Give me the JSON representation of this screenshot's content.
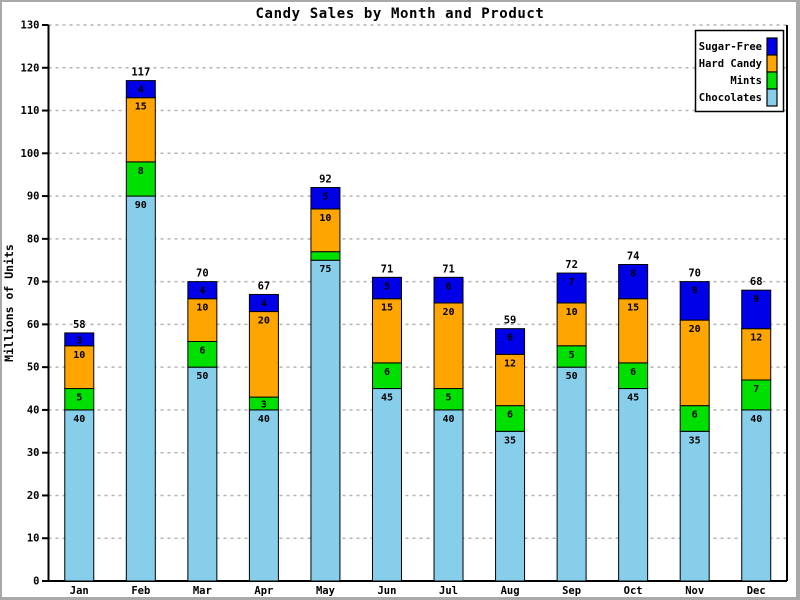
{
  "chart_data": {
    "type": "bar",
    "stacked": true,
    "title": "Candy Sales by Month and Product",
    "xlabel": "",
    "ylabel": "Millions of Units",
    "ylim": [
      0,
      130
    ],
    "ytick_step": 10,
    "yticks": [
      0,
      10,
      20,
      30,
      40,
      50,
      60,
      70,
      80,
      90,
      100,
      110,
      120,
      130
    ],
    "grid": "horizontal-dashed",
    "grid_color": "#b3b3b3",
    "axis_color": "#000000",
    "background": "#ffffff",
    "legend_position": "top-right",
    "legend_order": [
      "Sugar-Free",
      "Hard Candy",
      "Mints",
      "Chocolates"
    ],
    "categories": [
      "Jan",
      "Feb",
      "Mar",
      "Apr",
      "May",
      "Jun",
      "Jul",
      "Aug",
      "Sep",
      "Oct",
      "Nov",
      "Dec"
    ],
    "series": [
      {
        "name": "Chocolates",
        "color": "#87CEEB",
        "values": [
          40,
          90,
          50,
          40,
          75,
          45,
          40,
          35,
          50,
          45,
          35,
          40
        ]
      },
      {
        "name": "Mints",
        "color": "#00E000",
        "values": [
          5,
          8,
          6,
          3,
          2,
          6,
          5,
          6,
          5,
          6,
          6,
          7
        ]
      },
      {
        "name": "Hard Candy",
        "color": "#FFA500",
        "values": [
          10,
          15,
          10,
          20,
          10,
          15,
          20,
          12,
          10,
          15,
          20,
          12
        ]
      },
      {
        "name": "Sugar-Free",
        "color": "#0000E8",
        "values": [
          3,
          4,
          4,
          4,
          5,
          5,
          6,
          6,
          7,
          8,
          9,
          9
        ]
      }
    ],
    "totals": [
      58,
      117,
      70,
      67,
      92,
      71,
      71,
      59,
      72,
      74,
      70,
      68
    ]
  }
}
